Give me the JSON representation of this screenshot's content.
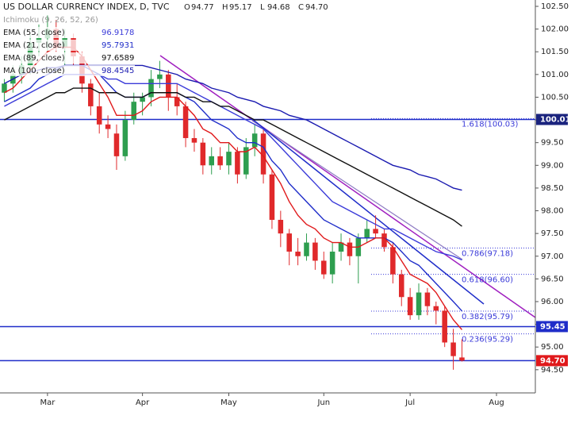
{
  "header": {
    "title": "US DOLLAR CURRENCY INDEX, D, TVC",
    "ohlc": [
      [
        "O",
        "94.77"
      ],
      [
        "H",
        "95.17"
      ],
      [
        "L",
        "94.68"
      ],
      [
        "C",
        "94.70"
      ]
    ],
    "indicator": "Ichimoku (9, 26, 52, 26)"
  },
  "chart_data": {
    "type": "candlestick",
    "categories": [
      null,
      null,
      null,
      null,
      null,
      "Mar",
      null,
      null,
      null,
      null,
      null,
      null,
      null,
      null,
      null,
      null,
      "Apr",
      null,
      null,
      null,
      null,
      null,
      null,
      null,
      null,
      null,
      "May",
      null,
      null,
      null,
      null,
      null,
      null,
      null,
      null,
      null,
      null,
      "Jun",
      null,
      null,
      null,
      null,
      null,
      null,
      null,
      null,
      null,
      "Jul",
      null,
      null,
      null,
      null,
      null,
      null,
      null,
      null,
      null,
      "Aug",
      null,
      null,
      null,
      null
    ],
    "open": [
      100.6,
      100.8,
      101.0,
      101.2,
      101.7,
      101.8,
      102.0,
      101.6,
      101.8,
      101.4,
      100.8,
      100.3,
      99.9,
      99.7,
      99.2,
      100.0,
      100.4,
      100.5,
      100.9,
      101.0,
      100.5,
      100.3,
      99.6,
      99.5,
      99.0,
      99.2,
      99.0,
      99.3,
      98.8,
      99.4,
      99.7,
      98.8,
      97.8,
      97.5,
      97.1,
      97.0,
      97.3,
      96.9,
      96.6,
      97.1,
      97.3,
      97.0,
      97.4,
      97.6,
      97.5,
      97.2,
      96.6,
      96.1,
      95.7,
      96.2,
      95.9,
      95.8,
      95.1,
      94.77,
      null,
      null,
      null,
      null,
      null,
      null,
      null,
      null
    ],
    "high": [
      100.9,
      101.2,
      101.4,
      101.9,
      102.1,
      102.3,
      102.2,
      102.0,
      101.9,
      101.5,
      100.9,
      100.6,
      100.1,
      99.9,
      100.2,
      100.6,
      100.6,
      101.1,
      101.3,
      101.1,
      100.8,
      100.4,
      99.8,
      99.6,
      99.4,
      99.4,
      99.5,
      99.4,
      99.6,
      99.9,
      99.8,
      98.9,
      98.0,
      97.6,
      97.4,
      97.5,
      97.4,
      97.1,
      97.3,
      97.5,
      97.4,
      97.5,
      97.8,
      97.9,
      97.6,
      97.3,
      96.7,
      96.3,
      96.4,
      96.3,
      96.0,
      95.9,
      95.4,
      95.17,
      null,
      null,
      null,
      null,
      null,
      null,
      null,
      null
    ],
    "low": [
      100.4,
      100.6,
      100.8,
      101.0,
      101.4,
      101.5,
      101.5,
      101.2,
      101.2,
      100.6,
      100.1,
      99.7,
      99.6,
      98.9,
      99.1,
      99.9,
      100.1,
      100.3,
      100.7,
      100.2,
      100.1,
      99.4,
      99.3,
      98.8,
      98.8,
      98.9,
      98.8,
      98.6,
      98.7,
      99.2,
      98.6,
      97.6,
      97.2,
      96.8,
      96.8,
      96.9,
      96.7,
      96.5,
      96.4,
      96.9,
      96.8,
      96.4,
      97.3,
      97.4,
      97.1,
      96.4,
      95.9,
      95.6,
      95.6,
      95.7,
      95.5,
      95.0,
      94.5,
      94.68,
      null,
      null,
      null,
      null,
      null,
      null,
      null,
      null
    ],
    "close": [
      100.8,
      101.0,
      101.2,
      101.7,
      101.8,
      102.0,
      101.6,
      101.8,
      101.4,
      100.8,
      100.3,
      99.9,
      99.8,
      99.2,
      100.0,
      100.4,
      100.5,
      100.9,
      101.0,
      100.5,
      100.3,
      99.6,
      99.5,
      99.0,
      99.2,
      99.0,
      99.3,
      98.8,
      99.4,
      99.7,
      98.8,
      97.8,
      97.5,
      97.1,
      97.0,
      97.3,
      96.9,
      96.6,
      97.1,
      97.3,
      97.0,
      97.4,
      97.6,
      97.5,
      97.2,
      96.6,
      96.1,
      95.7,
      96.2,
      95.9,
      95.8,
      95.1,
      94.8,
      94.7,
      null,
      null,
      null,
      null,
      null,
      null,
      null,
      null
    ],
    "up_color": "#2e9e4f",
    "down_color": "#e0292b",
    "series": [
      {
        "name": "EMA (55, close)",
        "color": "#3b3bd9",
        "values": [
          100.3,
          100.4,
          100.5,
          100.6,
          100.7,
          100.8,
          100.9,
          101.0,
          101.0,
          101.0,
          101.0,
          101.0,
          100.9,
          100.9,
          100.8,
          100.8,
          100.8,
          100.8,
          100.8,
          100.8,
          100.8,
          100.7,
          100.6,
          100.5,
          100.4,
          100.3,
          100.2,
          100.1,
          100.0,
          99.9,
          99.8,
          99.6,
          99.4,
          99.2,
          99.0,
          98.8,
          98.6,
          98.4,
          98.2,
          98.1,
          98.0,
          97.9,
          97.8,
          97.7,
          97.6,
          97.6,
          97.5,
          97.4,
          97.3,
          97.2,
          97.1,
          97.05,
          97.0,
          96.9178,
          null,
          null,
          null,
          null,
          null,
          null,
          null,
          null
        ]
      },
      {
        "name": "EMA (21, close)",
        "color": "#1f2dc9",
        "values": [
          100.4,
          100.5,
          100.6,
          100.7,
          100.9,
          101.0,
          101.1,
          101.2,
          101.2,
          101.2,
          101.1,
          101.0,
          100.8,
          100.6,
          100.5,
          100.5,
          100.5,
          100.6,
          100.6,
          100.6,
          100.6,
          100.5,
          100.4,
          100.2,
          100.0,
          99.9,
          99.8,
          99.6,
          99.5,
          99.5,
          99.4,
          99.1,
          98.9,
          98.6,
          98.4,
          98.2,
          98.0,
          97.8,
          97.7,
          97.6,
          97.5,
          97.4,
          97.4,
          97.4,
          97.4,
          97.3,
          97.1,
          96.9,
          96.8,
          96.6,
          96.4,
          96.2,
          96.0,
          95.7931,
          null,
          null,
          null,
          null,
          null,
          null,
          null,
          null
        ]
      },
      {
        "name": "EMA (89, close)",
        "color": "#111111",
        "values": [
          100.0,
          100.1,
          100.2,
          100.3,
          100.4,
          100.5,
          100.6,
          100.6,
          100.7,
          100.7,
          100.7,
          100.6,
          100.6,
          100.6,
          100.5,
          100.5,
          100.5,
          100.6,
          100.6,
          100.6,
          100.6,
          100.5,
          100.5,
          100.4,
          100.4,
          100.3,
          100.3,
          100.2,
          100.1,
          100.0,
          100.0,
          99.9,
          99.8,
          99.7,
          99.6,
          99.5,
          99.4,
          99.3,
          99.2,
          99.1,
          99.0,
          98.9,
          98.8,
          98.7,
          98.6,
          98.5,
          98.4,
          98.3,
          98.2,
          98.1,
          98.0,
          97.9,
          97.8,
          97.6589,
          null,
          null,
          null,
          null,
          null,
          null,
          null,
          null
        ]
      },
      {
        "name": "MA (100, close)",
        "color": "#1a1ab0",
        "values": [
          100.8,
          100.9,
          101.0,
          101.05,
          101.1,
          101.15,
          101.15,
          101.2,
          101.2,
          101.2,
          101.2,
          101.2,
          101.2,
          101.2,
          101.2,
          101.2,
          101.2,
          101.15,
          101.1,
          101.05,
          101.0,
          100.9,
          100.85,
          100.8,
          100.7,
          100.65,
          100.6,
          100.5,
          100.45,
          100.4,
          100.3,
          100.25,
          100.2,
          100.1,
          100.05,
          100.0,
          99.9,
          99.8,
          99.7,
          99.6,
          99.5,
          99.4,
          99.3,
          99.2,
          99.1,
          99.0,
          98.95,
          98.9,
          98.8,
          98.75,
          98.7,
          98.6,
          98.5,
          98.4545,
          null,
          null,
          null,
          null,
          null,
          null,
          null,
          null
        ]
      },
      {
        "color": "#e0191b",
        "values": [
          100.6,
          100.7,
          100.9,
          101.1,
          101.3,
          101.5,
          101.6,
          101.6,
          101.6,
          101.4,
          101.1,
          100.8,
          100.5,
          100.1,
          100.1,
          100.1,
          100.2,
          100.4,
          100.5,
          100.5,
          100.5,
          100.3,
          100.1,
          99.8,
          99.7,
          99.5,
          99.5,
          99.3,
          99.3,
          99.4,
          99.2,
          98.9,
          98.6,
          98.2,
          97.9,
          97.7,
          97.6,
          97.4,
          97.3,
          97.3,
          97.2,
          97.2,
          97.3,
          97.4,
          97.4,
          97.2,
          96.9,
          96.6,
          96.5,
          96.4,
          96.2,
          95.9,
          95.6,
          95.38,
          null,
          null,
          null,
          null,
          null,
          null,
          null,
          null
        ]
      }
    ],
    "ylim": [
      93.99,
      102.64
    ],
    "yticks": [
      {
        "value": 94.5,
        "label": "94.50"
      },
      {
        "value": 95.0,
        "label": "95.00"
      },
      {
        "value": 95.5,
        "label": "95.50"
      },
      {
        "value": 96.0,
        "label": "96.00"
      },
      {
        "value": 96.5,
        "label": "96.50"
      },
      {
        "value": 97.0,
        "label": "97.00"
      },
      {
        "value": 97.5,
        "label": "97.50"
      },
      {
        "value": 98.0,
        "label": "98.00"
      },
      {
        "value": 98.5,
        "label": "98.50"
      },
      {
        "value": 99.0,
        "label": "99.00"
      },
      {
        "value": 99.5,
        "label": "99.50"
      },
      {
        "value": 100.0,
        "label": "100.00"
      },
      {
        "value": 100.5,
        "label": "100.50"
      },
      {
        "value": 101.0,
        "label": "101.00"
      },
      {
        "value": 101.5,
        "label": "101.50"
      },
      {
        "value": 102.0,
        "label": "102.00"
      },
      {
        "value": 102.5,
        "label": "102.50"
      }
    ],
    "grid": false,
    "price_lines": [
      {
        "value": 100.01,
        "label": "100.01",
        "color": "#1f2dc9",
        "box_color": "#1a237e"
      },
      {
        "value": 95.45,
        "label": "95.45",
        "color": "#1f2dc9",
        "box_color": "#1f2dc9"
      },
      {
        "value": 94.7,
        "label": "94.70",
        "color": "#1f2dc9",
        "box_color": "#e0191b"
      }
    ],
    "fib_levels": [
      {
        "value": 100.03,
        "label": "1.618(100.03)"
      },
      {
        "value": 97.18,
        "label": "0.786(97.18)"
      },
      {
        "value": 96.6,
        "label": "0.618(96.60)"
      },
      {
        "value": 95.79,
        "label": "0.382(95.79)"
      },
      {
        "value": 95.29,
        "label": "0.236(95.29)"
      }
    ]
  }
}
